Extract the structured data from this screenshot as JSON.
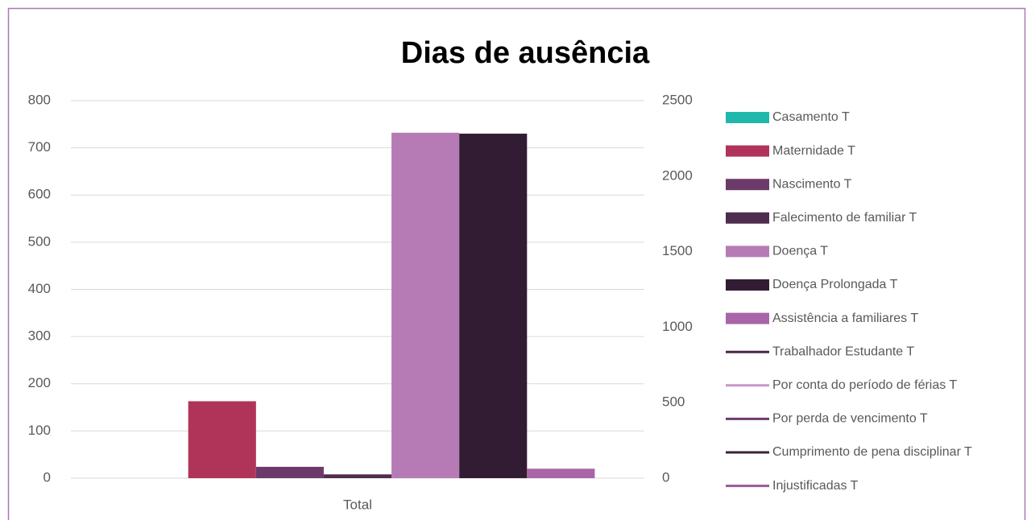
{
  "chart_data": {
    "type": "bar",
    "title": "Dias de ausência",
    "categories": [
      "Total"
    ],
    "ylim": [
      0,
      800
    ],
    "yticks": [
      0,
      100,
      200,
      300,
      400,
      500,
      600,
      700,
      800
    ],
    "y2lim": [
      0,
      2500
    ],
    "y2ticks": [
      0,
      500,
      1000,
      1500,
      2000,
      2500
    ],
    "grid": true,
    "legend": "right",
    "series": [
      {
        "name": "Casamento T",
        "type": "bar",
        "color": "#1fb8aa",
        "values": [
          0
        ]
      },
      {
        "name": "Maternidade T",
        "type": "bar",
        "color": "#b0345a",
        "values": [
          163
        ]
      },
      {
        "name": "Nascimento T",
        "type": "bar",
        "color": "#6b3a6b",
        "values": [
          24
        ]
      },
      {
        "name": "Falecimento de familiar T",
        "type": "bar",
        "color": "#4f2d4f",
        "values": [
          8
        ]
      },
      {
        "name": "Doença T",
        "type": "bar",
        "color": "#b67bb4",
        "values": [
          732
        ]
      },
      {
        "name": "Doença Prolongada T",
        "type": "bar",
        "color": "#321c33",
        "values": [
          730
        ]
      },
      {
        "name": "Assistência a familiares T",
        "type": "bar",
        "color": "#a865a8",
        "values": [
          20
        ]
      },
      {
        "name": "Trabalhador Estudante  T",
        "type": "line",
        "axis": "y2",
        "color": "#4a2545",
        "values": [
          null
        ]
      },
      {
        "name": "Por conta do período de férias T",
        "type": "line",
        "axis": "y2",
        "color": "#c896c8",
        "values": [
          null
        ]
      },
      {
        "name": "Por perda de vencimento T",
        "type": "line",
        "axis": "y2",
        "color": "#6e3a6e",
        "values": [
          null
        ]
      },
      {
        "name": "Cumprimento de pena disciplinar  T",
        "type": "line",
        "axis": "y2",
        "color": "#3a2438",
        "values": [
          null
        ]
      },
      {
        "name": "Injustificadas T",
        "type": "line",
        "axis": "y2",
        "color": "#9a5a9a",
        "values": [
          null
        ]
      }
    ]
  }
}
